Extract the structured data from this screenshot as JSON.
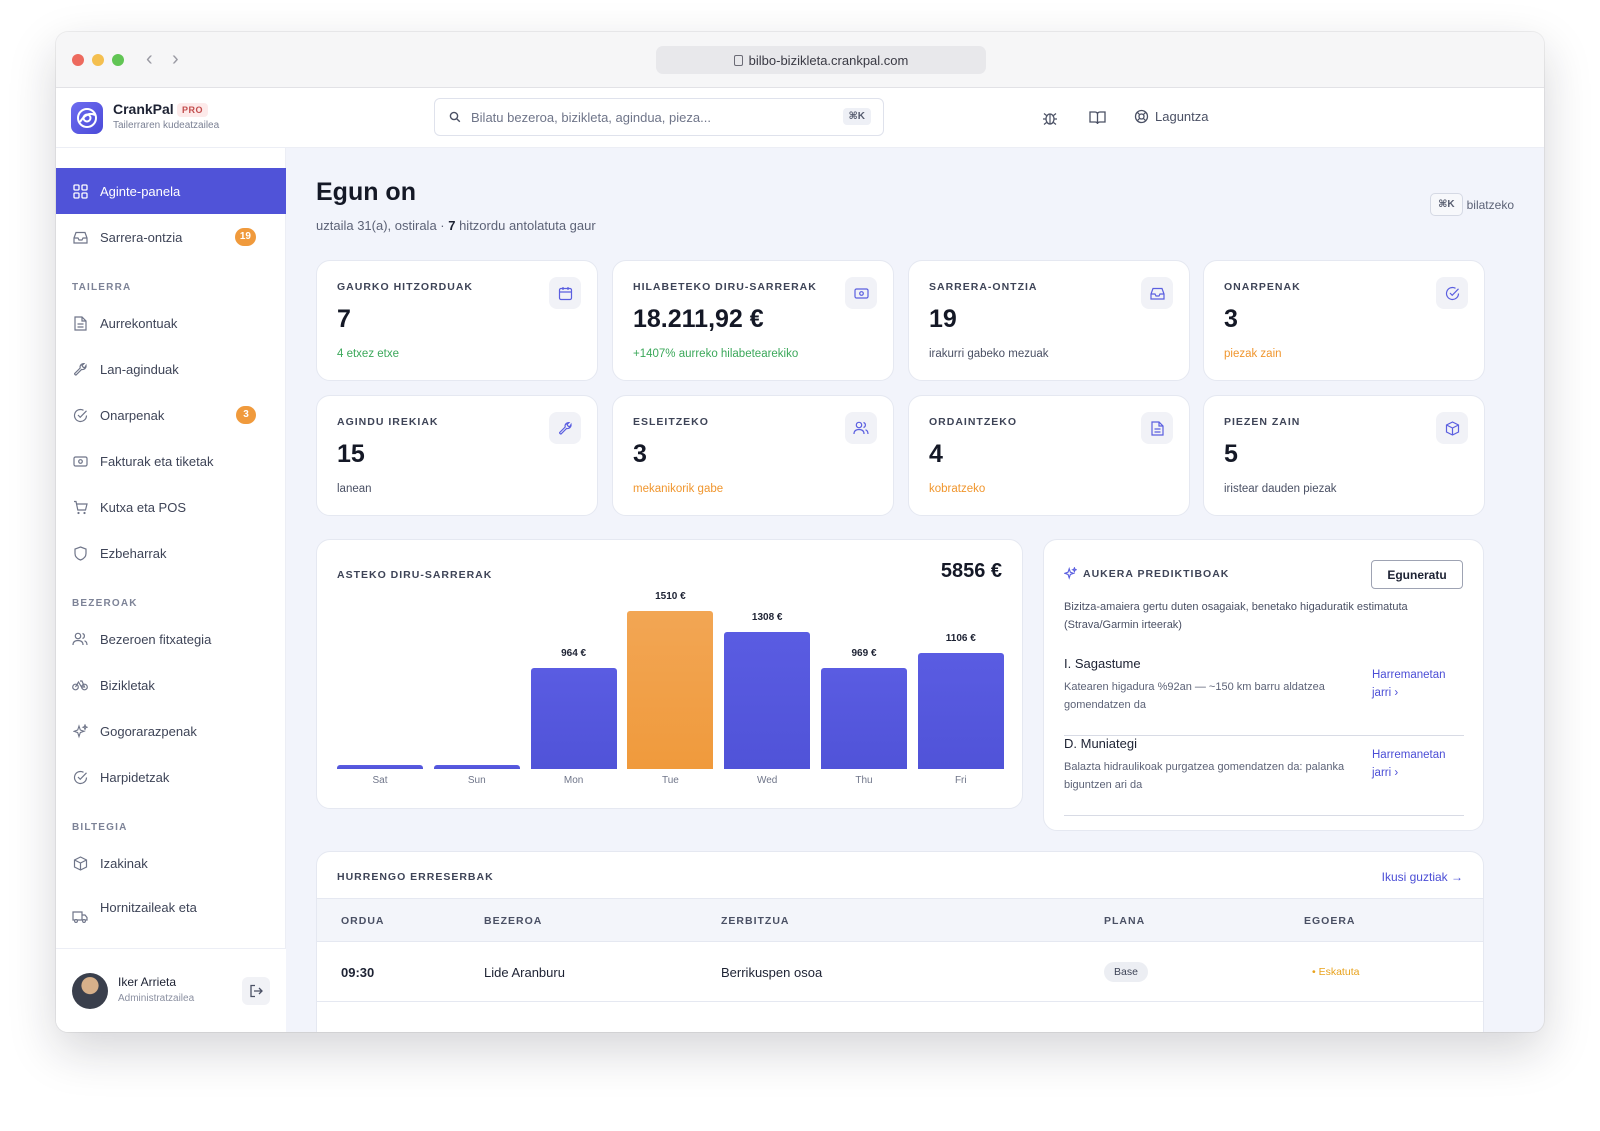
{
  "browser": {
    "url": "bilbo-bizikleta.crankpal.com"
  },
  "brand": {
    "name": "CrankPal",
    "badge": "PRO",
    "subtitle": "Tailerraren kudeatzailea"
  },
  "header": {
    "search_placeholder": "Bilatu bezeroa, bizikleta, agindua, pieza...",
    "search_shortcut": "⌘K",
    "help_label": "Laguntza"
  },
  "sidebar": {
    "items": [
      {
        "label": "Aginte-panela",
        "icon": "grid-icon"
      },
      {
        "label": "Sarrera-ontzia",
        "icon": "inbox-icon",
        "badge": "19"
      }
    ],
    "sections": [
      {
        "title": "TAILERRA",
        "items": [
          {
            "label": "Aurrekontuak",
            "icon": "document-icon"
          },
          {
            "label": "Lan-aginduak",
            "icon": "wrench-icon"
          },
          {
            "label": "Onarpenak",
            "icon": "check-circle-icon",
            "badge": "3"
          },
          {
            "label": "Fakturak eta tiketak",
            "icon": "banknote-icon"
          },
          {
            "label": "Kutxa eta POS",
            "icon": "cart-icon"
          },
          {
            "label": "Ezbeharrak",
            "icon": "shield-icon"
          }
        ]
      },
      {
        "title": "BEZEROAK",
        "items": [
          {
            "label": "Bezeroen fitxategia",
            "icon": "users-icon"
          },
          {
            "label": "Bizikletak",
            "icon": "bike-icon"
          },
          {
            "label": "Gogorarazpenak",
            "icon": "sparkles-icon"
          },
          {
            "label": "Harpidetzak",
            "icon": "check-circle-icon"
          }
        ]
      },
      {
        "title": "BILTEGIA",
        "items": [
          {
            "label": "Izakinak",
            "icon": "box-icon"
          },
          {
            "label": "Hornitzaileak eta",
            "icon": "truck-icon"
          }
        ]
      }
    ],
    "user": {
      "name": "Iker Arrieta",
      "role": "Administratzailea"
    }
  },
  "main": {
    "greeting": "Egun on",
    "date": "uztaila 31(a), ostirala · ",
    "appointments_count": "7",
    "appointments_suffix": " hitzordu antolatuta gaur",
    "kbd_hint_key": "⌘K",
    "kbd_hint_label": "bilatzeko"
  },
  "cards": [
    {
      "label": "GAURKO HITZORDUAK",
      "value": "7",
      "sub": "4 etxez etxe",
      "tone": "green",
      "icon": "calendar-icon"
    },
    {
      "label": "HILABETEKO DIRU-SARRERAK",
      "value": "18.211,92 €",
      "sub": "+1407% aurreko hilabetearekiko",
      "tone": "green",
      "icon": "banknote-icon"
    },
    {
      "label": "SARRERA-ONTZIA",
      "value": "19",
      "sub": "irakurri gabeko mezuak",
      "tone": "neutral",
      "icon": "inbox-icon"
    },
    {
      "label": "ONARPENAK",
      "value": "3",
      "sub": "piezak zain",
      "tone": "orange",
      "icon": "check-circle-icon"
    },
    {
      "label": "AGINDU IREKIAK",
      "value": "15",
      "sub": "lanean",
      "tone": "neutral",
      "icon": "wrench-icon"
    },
    {
      "label": "ESLEITZEKO",
      "value": "3",
      "sub": "mekanikorik gabe",
      "tone": "orange",
      "icon": "users-icon"
    },
    {
      "label": "ORDAINTZEKO",
      "value": "4",
      "sub": "kobratzeko",
      "tone": "orange",
      "icon": "document-icon"
    },
    {
      "label": "PIEZEN ZAIN",
      "value": "5",
      "sub": "iristear dauden piezak",
      "tone": "neutral",
      "icon": "box-icon"
    }
  ],
  "chart_data": {
    "type": "bar",
    "title": "ASTEKO DIRU-SARRERAK",
    "total": "5856 €",
    "categories": [
      "Sat",
      "Sun",
      "Mon",
      "Tue",
      "Wed",
      "Thu",
      "Fri"
    ],
    "values": [
      0,
      0,
      964,
      1510,
      1308,
      969,
      1106
    ],
    "value_labels": [
      "",
      "",
      "964 €",
      "1510 €",
      "1308 €",
      "969 €",
      "1106 €"
    ],
    "highlight_index": 3,
    "colors": {
      "bar": "#5053d8",
      "highlight": "#f09a3c"
    },
    "ylim": [
      0,
      1510
    ]
  },
  "predictive": {
    "title": "AUKERA PREDIKTIBOAK",
    "button": "Eguneratu",
    "description": "Bizitza-amaiera gertu duten osagaiak, benetako higaduratik estimatuta (Strava/Garmin irteerak)",
    "items": [
      {
        "name": "I. Sagastume",
        "text": "Katearen higadura %92an — ~150 km barru aldatzea gomendatzen da",
        "link": "Harremanetan jarri ›"
      },
      {
        "name": "D. Muniategi",
        "text": "Balazta hidraulikoak purgatzea gomendatzen da: palanka biguntzen ari da",
        "link": "Harremanetan jarri ›"
      }
    ]
  },
  "bookings": {
    "title": "HURRENGO ERRESERBAK",
    "see_all": "Ikusi guztiak →",
    "columns": [
      "ORDUA",
      "BEZEROA",
      "ZERBITZUA",
      "PLANA",
      "EGOERA"
    ],
    "rows": [
      {
        "time": "09:30",
        "client": "Lide Aranburu",
        "service": "Berrikuspen osoa",
        "plan": "Base",
        "status": "• Eskatuta"
      }
    ]
  },
  "colors": {
    "accent": "#5053d8",
    "badge": "#f09a3c",
    "positive": "#3ba85a",
    "warning": "#f0962e"
  }
}
